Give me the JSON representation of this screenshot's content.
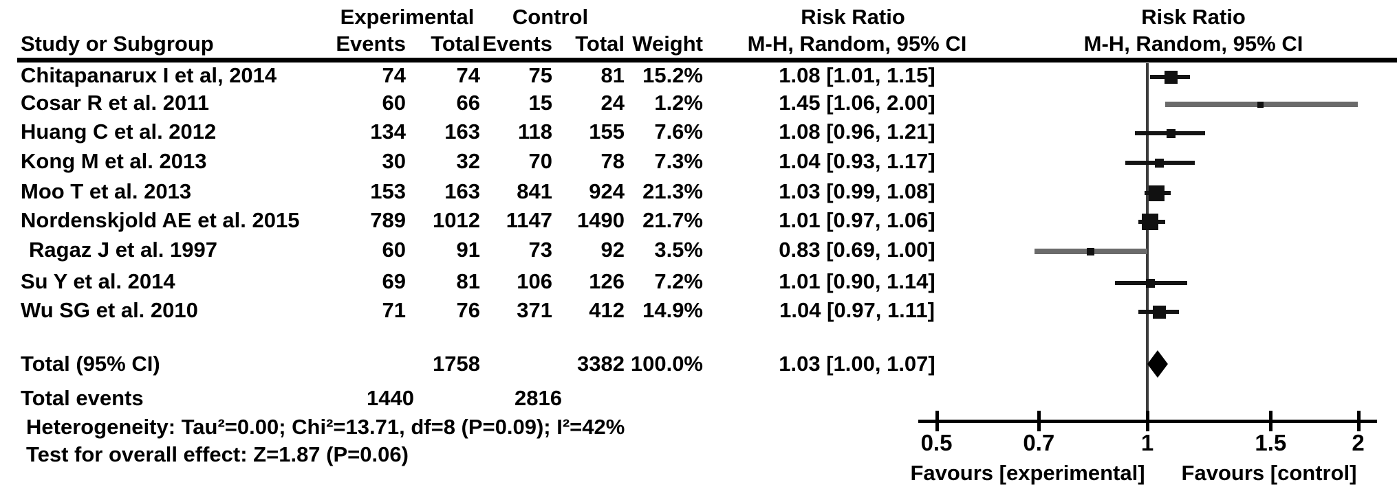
{
  "header": {
    "group_experimental": "Experimental",
    "group_control": "Control",
    "risk_ratio_left": "Risk Ratio",
    "risk_ratio_right": "Risk Ratio",
    "col_study": "Study or Subgroup",
    "col_events_exp": "Events",
    "col_total_exp": "Total",
    "col_events_ctl": "Events",
    "col_total_ctl": "Total",
    "col_weight": "Weight",
    "col_mh_left": "M-H, Random, 95% CI",
    "col_mh_right": "M-H, Random, 95% CI"
  },
  "chart_data": {
    "type": "forest",
    "effect_measure": "Risk Ratio",
    "method": "M-H, Random, 95% CI",
    "x_axis": {
      "scale": "log",
      "ticks": [
        0.5,
        0.7,
        1,
        1.5,
        2
      ],
      "range": [
        0.5,
        2
      ]
    },
    "studies": [
      {
        "name": "Chitapanarux I et al, 2014",
        "events_exp": 74,
        "total_exp": 74,
        "events_ctl": 75,
        "total_ctl": 81,
        "weight": "15.2%",
        "weight_value": 15.2,
        "rr": 1.08,
        "ci_low": 1.01,
        "ci_high": 1.15,
        "ci_label": "1.08 [1.01, 1.15]",
        "line_shade": "black",
        "indent": false
      },
      {
        "name": "Cosar R et al. 2011",
        "events_exp": 60,
        "total_exp": 66,
        "events_ctl": 15,
        "total_ctl": 24,
        "weight": "1.2%",
        "weight_value": 1.2,
        "rr": 1.45,
        "ci_low": 1.06,
        "ci_high": 2.0,
        "ci_label": "1.45 [1.06, 2.00]",
        "line_shade": "gray",
        "indent": false
      },
      {
        "name": "Huang C et al. 2012",
        "events_exp": 134,
        "total_exp": 163,
        "events_ctl": 118,
        "total_ctl": 155,
        "weight": "7.6%",
        "weight_value": 7.6,
        "rr": 1.08,
        "ci_low": 0.96,
        "ci_high": 1.21,
        "ci_label": "1.08 [0.96, 1.21]",
        "line_shade": "black",
        "indent": false
      },
      {
        "name": "Kong M et al. 2013",
        "events_exp": 30,
        "total_exp": 32,
        "events_ctl": 70,
        "total_ctl": 78,
        "weight": "7.3%",
        "weight_value": 7.3,
        "rr": 1.04,
        "ci_low": 0.93,
        "ci_high": 1.17,
        "ci_label": "1.04 [0.93, 1.17]",
        "line_shade": "black",
        "indent": false
      },
      {
        "name": "Moo T et al. 2013",
        "events_exp": 153,
        "total_exp": 163,
        "events_ctl": 841,
        "total_ctl": 924,
        "weight": "21.3%",
        "weight_value": 21.3,
        "rr": 1.03,
        "ci_low": 0.99,
        "ci_high": 1.08,
        "ci_label": "1.03 [0.99, 1.08]",
        "line_shade": "black",
        "indent": false
      },
      {
        "name": "Nordenskjold AE et al. 2015",
        "events_exp": 789,
        "total_exp": 1012,
        "events_ctl": 1147,
        "total_ctl": 1490,
        "weight": "21.7%",
        "weight_value": 21.7,
        "rr": 1.01,
        "ci_low": 0.97,
        "ci_high": 1.06,
        "ci_label": "1.01 [0.97, 1.06]",
        "line_shade": "black",
        "indent": false
      },
      {
        "name": "Ragaz J et al. 1997",
        "events_exp": 60,
        "total_exp": 91,
        "events_ctl": 73,
        "total_ctl": 92,
        "weight": "3.5%",
        "weight_value": 3.5,
        "rr": 0.83,
        "ci_low": 0.69,
        "ci_high": 1.0,
        "ci_label": "0.83 [0.69, 1.00]",
        "line_shade": "gray",
        "indent": true
      },
      {
        "name": "Su Y et al. 2014",
        "events_exp": 69,
        "total_exp": 81,
        "events_ctl": 106,
        "total_ctl": 126,
        "weight": "7.2%",
        "weight_value": 7.2,
        "rr": 1.01,
        "ci_low": 0.9,
        "ci_high": 1.14,
        "ci_label": "1.01 [0.90, 1.14]",
        "line_shade": "black",
        "indent": false
      },
      {
        "name": "Wu SG et al. 2010",
        "events_exp": 71,
        "total_exp": 76,
        "events_ctl": 371,
        "total_ctl": 412,
        "weight": "14.9%",
        "weight_value": 14.9,
        "rr": 1.04,
        "ci_low": 0.97,
        "ci_high": 1.11,
        "ci_label": "1.04 [0.97, 1.11]",
        "line_shade": "black",
        "indent": false
      }
    ],
    "total": {
      "label": "Total (95% CI)",
      "total_exp": 1758,
      "total_ctl": 3382,
      "weight": "100.0%",
      "rr": 1.03,
      "ci_low": 1.0,
      "ci_high": 1.07,
      "ci_label": "1.03 [1.00, 1.07]"
    },
    "total_events": {
      "label": "Total events",
      "experimental": 1440,
      "control": 2816
    },
    "heterogeneity": "Heterogeneity: Tau²=0.00; Chi²=13.71, df=8 (P=0.09); I²=42%",
    "overall_effect": "Test for overall effect: Z=1.87 (P=0.06)",
    "favours_left": "Favours [experimental]",
    "favours_right": "Favours [control]",
    "colors": {
      "text": "#000000",
      "ci_line_black": "#141414",
      "ci_line_gray": "#6b6b6b",
      "marker": "#111111",
      "axis": "#000000",
      "center_line": "#3c3c3c"
    }
  }
}
